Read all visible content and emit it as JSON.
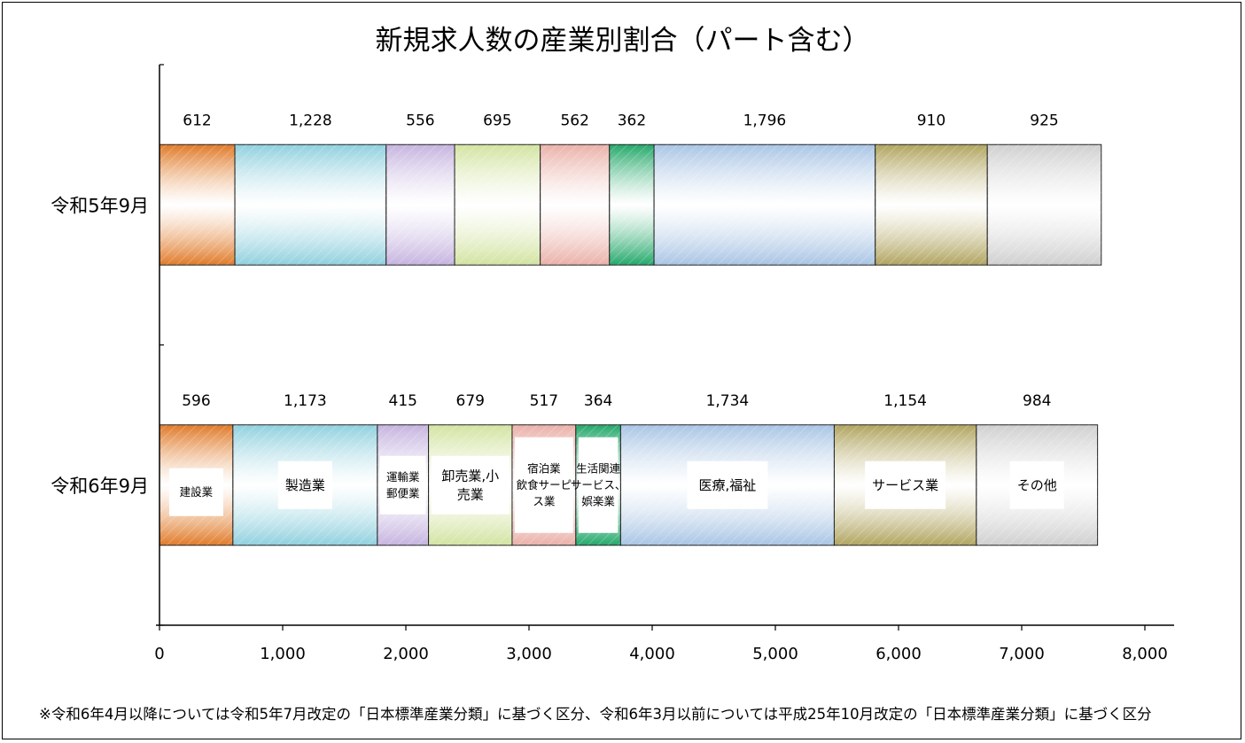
{
  "chart_data": {
    "type": "bar",
    "orientation": "horizontal",
    "stacked": true,
    "title": "新規求人数の産業別割合（パート含む）",
    "categories": [
      "令和5年9月",
      "令和6年9月"
    ],
    "series": [
      {
        "name": "建設業",
        "values": [
          612,
          596
        ],
        "color": "#e07a28"
      },
      {
        "name": "製造業",
        "values": [
          1228,
          1173
        ],
        "color": "#8fd0de"
      },
      {
        "name": "運輸業郵便業",
        "values": [
          556,
          415
        ],
        "color": "#c5b3df"
      },
      {
        "name": "卸売業,小売業",
        "values": [
          695,
          679
        ],
        "color": "#d2e3a0"
      },
      {
        "name": "宿泊業飲食サービス業",
        "values": [
          562,
          517
        ],
        "color": "#eab0a8"
      },
      {
        "name": "生活関連サービス、娯楽業",
        "values": [
          362,
          364
        ],
        "color": "#23a86a"
      },
      {
        "name": "医療,福祉",
        "values": [
          1796,
          1734
        ],
        "color": "#a8c4e4"
      },
      {
        "name": "サービス業",
        "values": [
          910,
          1154
        ],
        "color": "#b0a45e"
      },
      {
        "name": "その他",
        "values": [
          925,
          984
        ],
        "color": "#cfcfcf"
      }
    ],
    "xlim": [
      0,
      8000
    ],
    "xticks": [
      0,
      1000,
      2000,
      3000,
      4000,
      5000,
      6000,
      7000,
      8000
    ],
    "tick_labels": [
      "0",
      "1,000",
      "2,000",
      "3,000",
      "4,000",
      "5,000",
      "6,000",
      "7,000",
      "8,000"
    ],
    "value_labels": [
      [
        "612",
        "1,228",
        "556",
        "695",
        "562",
        "362",
        "1,796",
        "910",
        "925"
      ],
      [
        "596",
        "1,173",
        "415",
        "679",
        "517",
        "364",
        "1,734",
        "1,154",
        "984"
      ]
    ],
    "segment_labels": [
      [
        "建設業"
      ],
      [
        "製造業"
      ],
      [
        "運輸業",
        "郵便業"
      ],
      [
        "卸売業,小",
        "売業"
      ],
      [
        "宿泊業",
        "飲食サーピ",
        "ス業"
      ],
      [
        "生活関連",
        "サービス、",
        "娯楽業"
      ],
      [
        "医療,福祉"
      ],
      [
        "サービス業"
      ],
      [
        "その他"
      ]
    ],
    "grid": false
  },
  "footnote": "※令和6年4月以降については令和5年7月改定の「日本標準産業分類」に基づく区分、令和6年3月以前については平成25年10月改定の「日本標準産業分類」に基づく区分"
}
